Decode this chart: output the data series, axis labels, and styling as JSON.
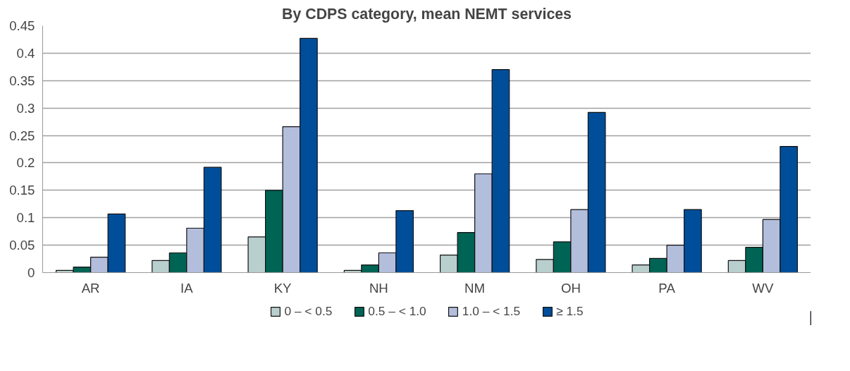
{
  "chart_data": {
    "type": "bar",
    "title": "By CDPS category, mean NEMT services",
    "categories": [
      "AR",
      "IA",
      "KY",
      "NH",
      "NM",
      "OH",
      "PA",
      "WV"
    ],
    "series": [
      {
        "name": "0 – < 0.5",
        "color": "#b9cfcd",
        "values": [
          0.004,
          0.022,
          0.065,
          0.004,
          0.032,
          0.024,
          0.014,
          0.022
        ]
      },
      {
        "name": "0.5 – < 1.0",
        "color": "#006454",
        "values": [
          0.01,
          0.036,
          0.15,
          0.014,
          0.073,
          0.056,
          0.026,
          0.046
        ]
      },
      {
        "name": "1.0 – < 1.5",
        "color": "#b3bedd",
        "values": [
          0.028,
          0.081,
          0.266,
          0.036,
          0.18,
          0.115,
          0.05,
          0.097
        ]
      },
      {
        "name": "≥ 1.5",
        "color": "#004e9a",
        "values": [
          0.107,
          0.192,
          0.427,
          0.113,
          0.37,
          0.292,
          0.115,
          0.23
        ]
      }
    ],
    "ylim": [
      0,
      0.45
    ],
    "yticks": [
      0,
      0.05,
      0.1,
      0.15,
      0.2,
      0.25,
      0.3,
      0.35,
      0.4,
      0.45
    ],
    "grid": "y",
    "legend": "bottom"
  }
}
